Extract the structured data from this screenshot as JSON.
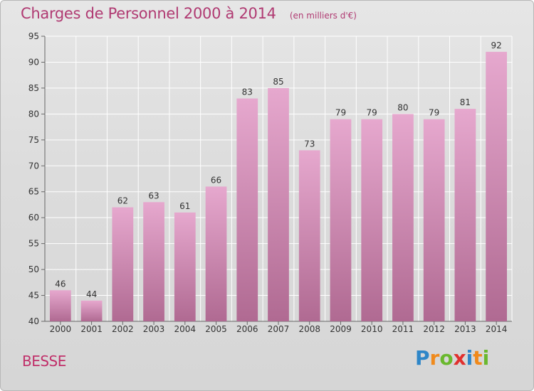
{
  "chart_data": {
    "type": "bar",
    "title": "Charges de Personnel 2000 à 2014",
    "subtitle": "(en milliers d'€)",
    "categories": [
      "2000",
      "2001",
      "2002",
      "2003",
      "2004",
      "2005",
      "2006",
      "2007",
      "2008",
      "2009",
      "2010",
      "2011",
      "2012",
      "2013",
      "2014"
    ],
    "values": [
      46,
      44,
      62,
      63,
      61,
      66,
      83,
      85,
      73,
      79,
      79,
      80,
      79,
      81,
      92
    ],
    "ylim": [
      40,
      95
    ],
    "yticks": [
      "40",
      "45",
      "50",
      "55",
      "60",
      "65",
      "70",
      "75",
      "80",
      "85",
      "90",
      "95"
    ],
    "xlabel": "",
    "ylabel": "",
    "grid": true,
    "colors": {
      "bar_top": "#e6a8ce",
      "bar_bottom": "#b06a92",
      "title": "#b03a72"
    }
  },
  "footer": {
    "commune": "BESSE",
    "logo_letters": [
      "P",
      "r",
      "o",
      "x",
      "i",
      "t",
      "i"
    ],
    "logo_colors": [
      "#2e86c8",
      "#f08a1c",
      "#6ab82e",
      "#e0302e",
      "#2e86c8",
      "#f08a1c",
      "#6ab82e"
    ]
  }
}
